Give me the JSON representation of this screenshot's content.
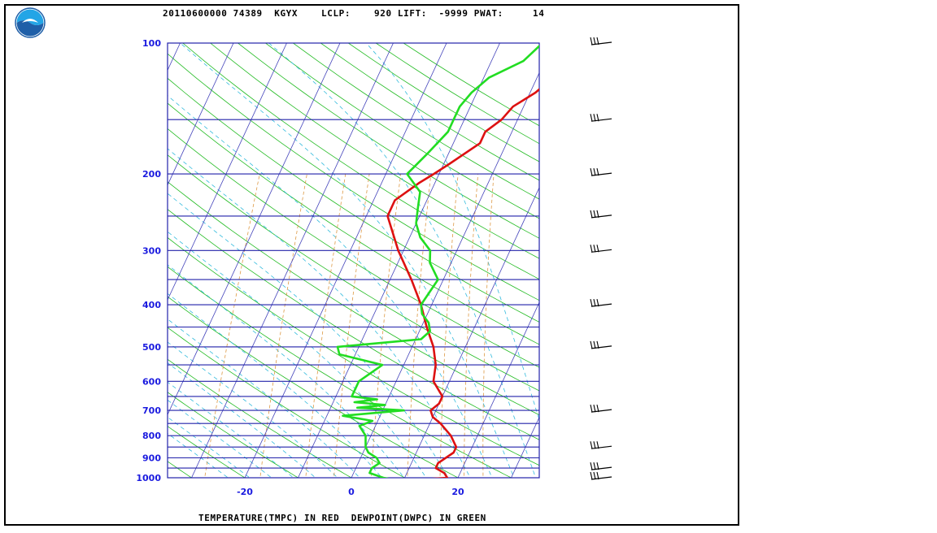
{
  "header": {
    "text": "20110600000 74389  KGYX    LCLP:    920 LIFT:  -9999 PWAT:     14"
  },
  "footer": {
    "text": "TEMPERATURE(TMPC) IN RED  DEWPOINT(DWPC) IN GREEN"
  },
  "colors": {
    "temperature": "#dd1111",
    "dewpoint": "#22dd22",
    "isobar": "#2222aa",
    "isotherm": "#4444bb",
    "dry_adiabat": "#22bb22",
    "moist_adiabat": "#33bbdd",
    "mixing_ratio": "#dd9944"
  },
  "chart_data": {
    "type": "line",
    "title": "",
    "xlabel": "TEMPERATURE(TMPC) IN RED  DEWPOINT(DWPC) IN GREEN",
    "ylabel": "",
    "xlim": [
      -35,
      35
    ],
    "ylim": [
      1000,
      100
    ],
    "y_scale": "log",
    "x_ticks": [
      -20,
      0,
      20
    ],
    "y_ticks": [
      100,
      200,
      300,
      400,
      500,
      600,
      700,
      800,
      900,
      1000
    ],
    "grid": true,
    "series": [
      {
        "name": "TMPC",
        "pressure": [
          1010,
          1000,
          975,
          950,
          925,
          900,
          875,
          850,
          800,
          750,
          725,
          700,
          675,
          650,
          600,
          550,
          500,
          450,
          400,
          350,
          300,
          250,
          230,
          210,
          200,
          190,
          170,
          160,
          150,
          140,
          130,
          125,
          120,
          110,
          100
        ],
        "temperature": [
          13,
          18,
          17,
          15,
          15,
          16,
          17,
          17,
          15,
          12,
          10,
          9,
          10,
          10,
          7,
          6,
          4,
          1,
          -2,
          -6,
          -11,
          -16,
          -16,
          -13,
          -11,
          -9,
          -5,
          -5,
          -3,
          -2,
          1,
          2,
          4,
          7,
          10
        ]
      },
      {
        "name": "DWPC",
        "pressure": [
          1010,
          1000,
          975,
          950,
          925,
          900,
          875,
          850,
          800,
          760,
          740,
          720,
          700,
          690,
          680,
          670,
          660,
          650,
          600,
          550,
          520,
          500,
          480,
          460,
          440,
          420,
          400,
          350,
          320,
          300,
          280,
          260,
          240,
          220,
          200,
          180,
          160,
          150,
          140,
          130,
          125,
          120,
          110,
          100
        ],
        "temperature": [
          8,
          6,
          3,
          3,
          4,
          3,
          1,
          0,
          -1,
          -3,
          -1,
          -7,
          4,
          -5,
          0,
          -6,
          -2,
          -7,
          -7,
          -4,
          -13,
          -14,
          1,
          2,
          1,
          -1,
          -2,
          -1,
          -4,
          -5,
          -8,
          -10,
          -11,
          -12,
          -16,
          -14,
          -12,
          -12,
          -12,
          -11,
          -10,
          -9,
          -4,
          -2
        ]
      }
    ],
    "wind_barb_pressures": [
      100,
      150,
      200,
      250,
      300,
      400,
      500,
      700,
      850,
      950,
      1000
    ]
  }
}
